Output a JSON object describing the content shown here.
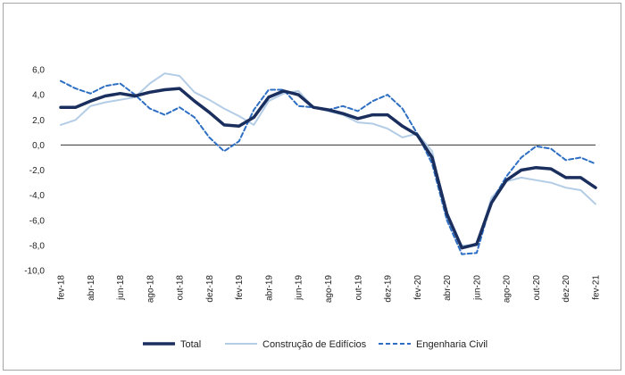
{
  "chart_data": {
    "type": "line",
    "categories": [
      "fev-18",
      "mar-18",
      "abr-18",
      "mai-18",
      "jun-18",
      "jul-18",
      "ago-18",
      "set-18",
      "out-18",
      "nov-18",
      "dez-18",
      "jan-19",
      "fev-19",
      "mar-19",
      "abr-19",
      "mai-19",
      "jun-19",
      "jul-19",
      "ago-19",
      "set-19",
      "out-19",
      "nov-19",
      "dez-19",
      "jan-20",
      "fev-20",
      "mar-20",
      "abr-20",
      "mai-20",
      "jun-20",
      "jul-20",
      "ago-20",
      "set-20",
      "out-20",
      "nov-20",
      "dez-20",
      "jan-21",
      "fev-21"
    ],
    "tick_labels": [
      "fev-18",
      "abr-18",
      "jun-18",
      "ago-18",
      "out-18",
      "dez-18",
      "fev-19",
      "abr-19",
      "jun-19",
      "ago-19",
      "out-19",
      "dez-19",
      "fev-20",
      "abr-20",
      "jun-20",
      "ago-20",
      "out-20",
      "dez-20",
      "fev-21"
    ],
    "y_ticks": [
      "6,0",
      "4,0",
      "2,0",
      "0,0",
      "-2,0",
      "-4,0",
      "-6,0",
      "-8,0",
      "-10,0"
    ],
    "ylim": [
      -10,
      6
    ],
    "grid": false,
    "legend_position": "bottom",
    "series": [
      {
        "name": "Total",
        "color": "#1b2f5e",
        "style": "solid-thick",
        "values": [
          3.0,
          3.0,
          3.5,
          3.9,
          4.1,
          3.9,
          4.2,
          4.4,
          4.5,
          3.5,
          2.6,
          1.6,
          1.5,
          2.2,
          3.8,
          4.3,
          4.0,
          3.0,
          2.8,
          2.5,
          2.1,
          2.4,
          2.4,
          1.5,
          0.8,
          -1.0,
          -5.5,
          -8.2,
          -7.9,
          -4.6,
          -2.8,
          -2.0,
          -1.8,
          -1.9,
          -2.6,
          -2.6,
          -3.4
        ]
      },
      {
        "name": "Construção de Edifícios",
        "color": "#b4cde6",
        "style": "solid",
        "values": [
          1.6,
          2.0,
          3.1,
          3.4,
          3.6,
          3.8,
          4.9,
          5.7,
          5.5,
          4.2,
          3.6,
          2.9,
          2.3,
          1.6,
          3.5,
          4.1,
          4.3,
          3.0,
          2.7,
          2.4,
          1.8,
          1.7,
          1.3,
          0.6,
          0.9,
          -0.5,
          -6.0,
          -8.0,
          -8.0,
          -4.2,
          -2.9,
          -2.6,
          -2.8,
          -3.0,
          -3.4,
          -3.6,
          -4.7
        ]
      },
      {
        "name": "Engenharia Civil",
        "color": "#2e6fc4",
        "style": "dashed",
        "values": [
          5.1,
          4.5,
          4.1,
          4.7,
          4.9,
          4.0,
          2.9,
          2.4,
          3.0,
          2.2,
          0.6,
          -0.5,
          0.3,
          2.8,
          4.4,
          4.4,
          3.1,
          3.0,
          2.8,
          3.1,
          2.7,
          3.5,
          4.0,
          2.9,
          0.9,
          -1.5,
          -6.0,
          -8.7,
          -8.6,
          -4.5,
          -2.5,
          -1.0,
          -0.1,
          -0.3,
          -1.2,
          -1.0,
          -1.5
        ]
      }
    ]
  }
}
